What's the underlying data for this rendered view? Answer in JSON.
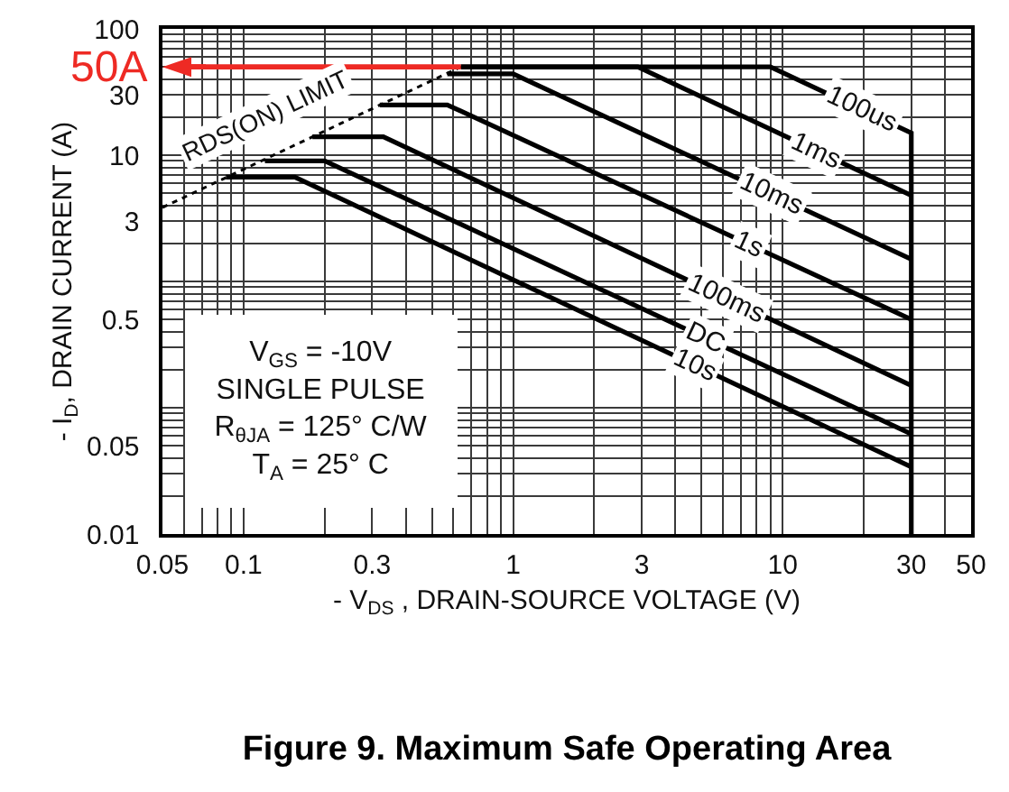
{
  "chart_data": {
    "type": "line",
    "title": "Figure 9. Maximum Safe Operating Area",
    "xlabel": "- V$_{DS}$ , DRAIN-SOURCE VOLTAGE (V)",
    "ylabel": "- I$_{D}$, DRAIN CURRENT (A)",
    "log": "xy",
    "xlim": [
      0.05,
      50
    ],
    "ylim": [
      0.01,
      100
    ],
    "xticks": [
      0.05,
      0.1,
      0.3,
      1,
      3,
      10,
      30,
      50
    ],
    "yticks": [
      0.01,
      0.05,
      0.5,
      3,
      10,
      30,
      100
    ],
    "grid": true,
    "line_style": "solid",
    "series": [
      {
        "name": "100us",
        "color": "#000000",
        "x": [
          0.64,
          9,
          30,
          30
        ],
        "values": [
          50,
          50,
          15,
          0.01
        ]
      },
      {
        "name": "1ms",
        "color": "#000000",
        "x": [
          0.64,
          2.9,
          30
        ],
        "values": [
          50,
          50,
          4.8
        ]
      },
      {
        "name": "10ms",
        "color": "#000000",
        "x": [
          0.57,
          1.0,
          30
        ],
        "values": [
          44,
          44,
          1.5
        ]
      },
      {
        "name": "1s",
        "color": "#000000",
        "x": [
          0.32,
          0.57,
          30
        ],
        "values": [
          25,
          25,
          0.5
        ]
      },
      {
        "name": "100ms",
        "color": "#000000",
        "x": [
          0.18,
          0.33,
          30
        ],
        "values": [
          14,
          14,
          0.15
        ]
      },
      {
        "name": "DC",
        "color": "#000000",
        "x": [
          0.12,
          0.2,
          30
        ],
        "values": [
          9,
          9,
          0.062
        ]
      },
      {
        "name": "10s",
        "color": "#000000",
        "x": [
          0.086,
          0.155,
          30
        ],
        "values": [
          6.7,
          6.7,
          0.034
        ]
      },
      {
        "name": "RDS(ON) LIMIT",
        "color": "#000000",
        "line_style": "dotted",
        "x": [
          0.05,
          0.64
        ],
        "values": [
          3.85,
          50
        ]
      }
    ],
    "ref_lines": [
      {
        "axis": "y",
        "value": 50,
        "label": "50A",
        "color": "#ee2a24"
      }
    ],
    "annotations": [
      "V$_{GS}$ = -10V\nSINGLE PULSE\nR$_{θJA}$ = 125° C/W\nT$_{A}$ = 25° C"
    ]
  }
}
